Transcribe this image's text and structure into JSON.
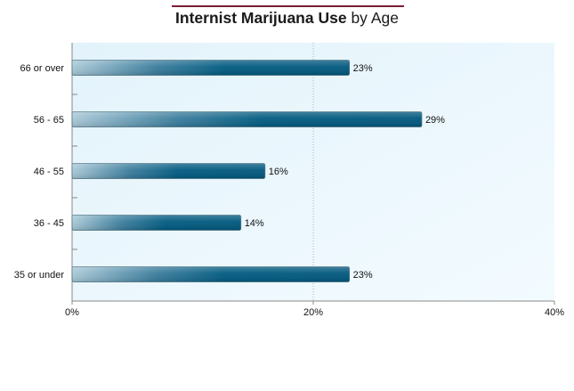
{
  "chart_data": {
    "type": "bar",
    "orientation": "horizontal",
    "title_bold": "Internist Marijuana Use",
    "title_rest": "by Age",
    "categories": [
      "66 or over",
      "56 - 65",
      "46 - 55",
      "36 - 45",
      "35 or under"
    ],
    "values": [
      23,
      29,
      16,
      14,
      23
    ],
    "value_labels": [
      "23%",
      "29%",
      "16%",
      "14%",
      "23%"
    ],
    "xlim": [
      0,
      40
    ],
    "x_ticks": [
      0,
      20,
      40
    ],
    "x_tick_labels": [
      "0%",
      "20%",
      "40%"
    ],
    "grid": "vertical dotted at 20%",
    "colors": {
      "bar_dark": "#005a80",
      "bar_light": "#a8c8d6",
      "plot_bg": "#eaf6fc",
      "title_rule": "#7a1f33"
    }
  }
}
